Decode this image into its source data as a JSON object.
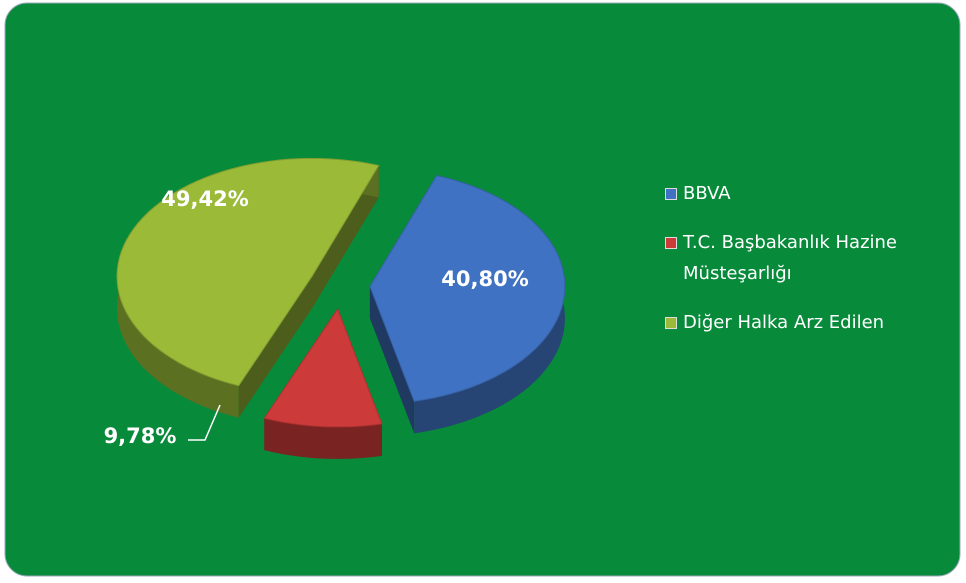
{
  "chart_data": {
    "type": "pie3d",
    "categories": [
      "BBVA",
      "T.C. Başbakanlık Hazine Müsteşarlığı",
      "Diğer Halka Arz Edilen"
    ],
    "values": [
      40.8,
      9.78,
      49.42
    ],
    "value_labels": [
      "40,80%",
      "9,78%",
      "49,42%"
    ],
    "colors": [
      "#3f72c2",
      "#cc3a3a",
      "#9aba38"
    ],
    "legend": "right"
  }
}
